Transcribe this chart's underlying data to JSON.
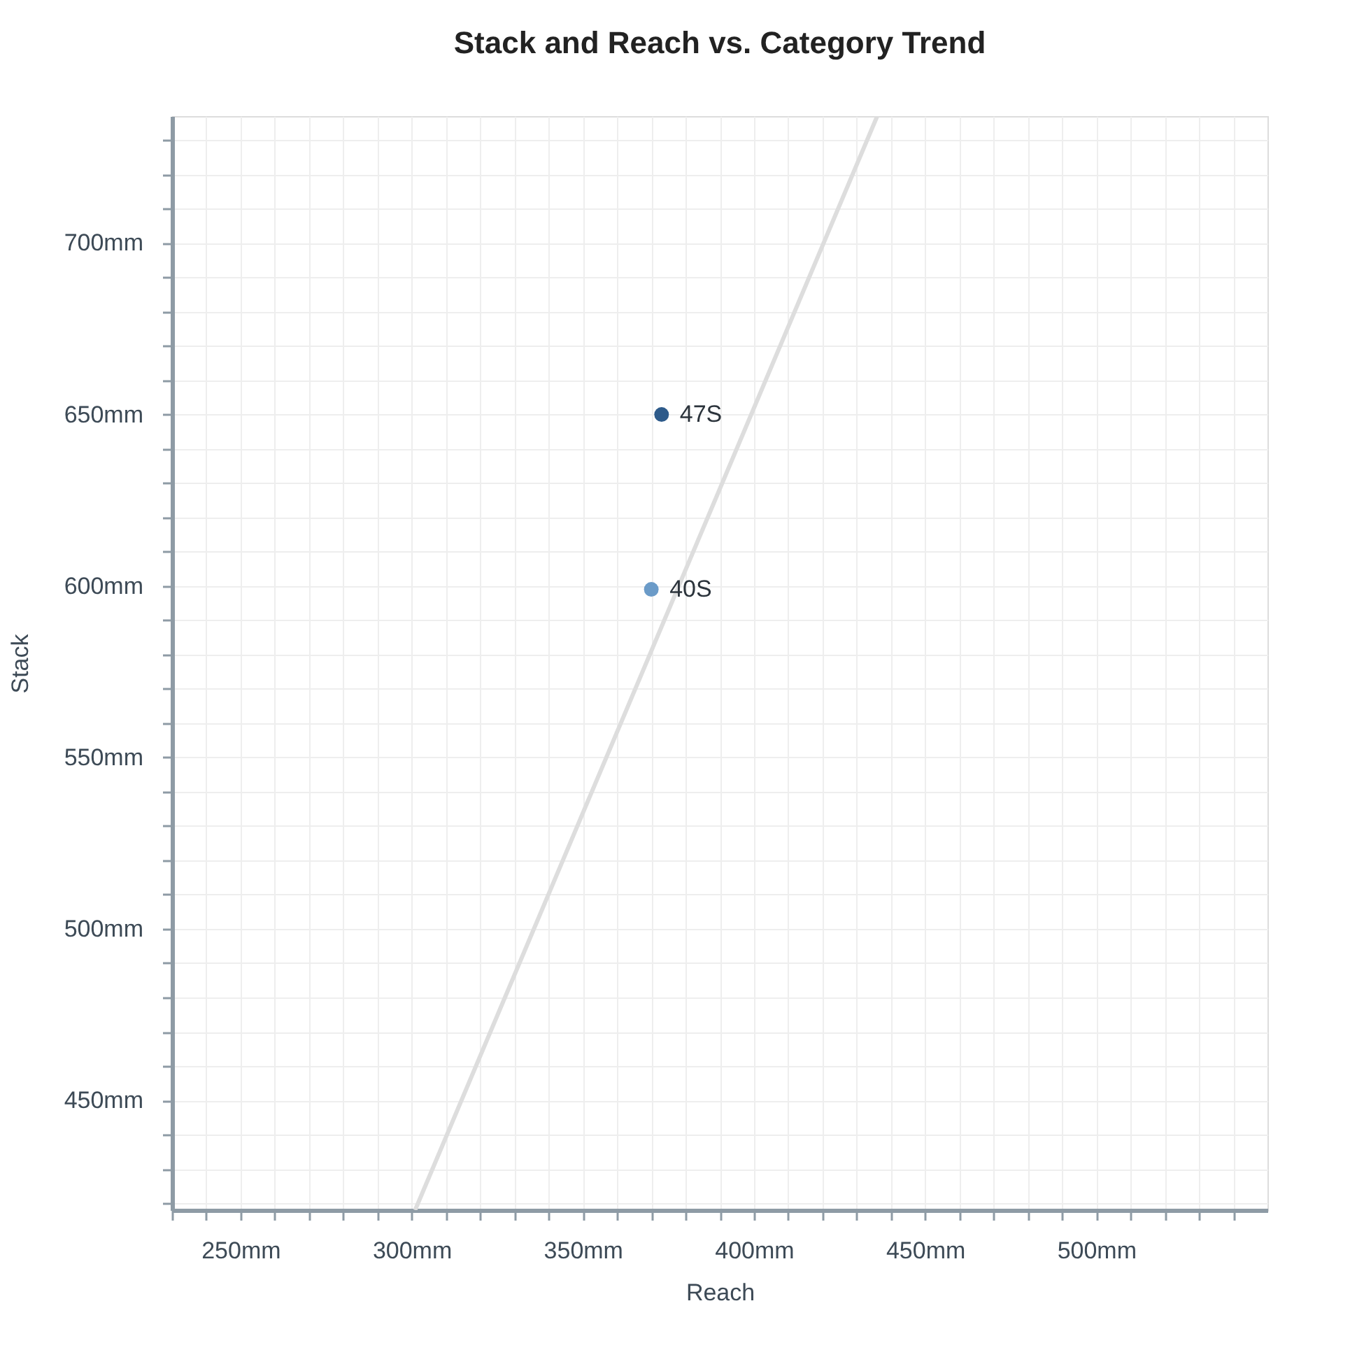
{
  "chart_data": {
    "type": "scatter",
    "title": "Stack and Reach vs. Category Trend",
    "xlabel": "Reach",
    "ylabel": "Stack",
    "xlim": [
      230,
      550
    ],
    "ylim": [
      418,
      737
    ],
    "xticks": [
      {
        "value": 230,
        "label": null
      },
      {
        "value": 240,
        "label": null
      },
      {
        "value": 250,
        "label": "250mm"
      },
      {
        "value": 260,
        "label": null
      },
      {
        "value": 270,
        "label": null
      },
      {
        "value": 280,
        "label": null
      },
      {
        "value": 290,
        "label": null
      },
      {
        "value": 300,
        "label": "300mm"
      },
      {
        "value": 310,
        "label": null
      },
      {
        "value": 320,
        "label": null
      },
      {
        "value": 330,
        "label": null
      },
      {
        "value": 340,
        "label": null
      },
      {
        "value": 350,
        "label": "350mm"
      },
      {
        "value": 360,
        "label": null
      },
      {
        "value": 370,
        "label": null
      },
      {
        "value": 380,
        "label": null
      },
      {
        "value": 390,
        "label": null
      },
      {
        "value": 400,
        "label": "400mm"
      },
      {
        "value": 410,
        "label": null
      },
      {
        "value": 420,
        "label": null
      },
      {
        "value": 430,
        "label": null
      },
      {
        "value": 440,
        "label": null
      },
      {
        "value": 450,
        "label": "450mm"
      },
      {
        "value": 460,
        "label": null
      },
      {
        "value": 470,
        "label": null
      },
      {
        "value": 480,
        "label": null
      },
      {
        "value": 490,
        "label": null
      },
      {
        "value": 500,
        "label": "500mm"
      },
      {
        "value": 510,
        "label": null
      },
      {
        "value": 520,
        "label": null
      },
      {
        "value": 530,
        "label": null
      },
      {
        "value": 540,
        "label": null
      }
    ],
    "yticks": [
      {
        "value": 420,
        "label": null
      },
      {
        "value": 430,
        "label": null
      },
      {
        "value": 440,
        "label": null
      },
      {
        "value": 450,
        "label": "450mm"
      },
      {
        "value": 460,
        "label": null
      },
      {
        "value": 470,
        "label": null
      },
      {
        "value": 480,
        "label": null
      },
      {
        "value": 490,
        "label": null
      },
      {
        "value": 500,
        "label": "500mm"
      },
      {
        "value": 510,
        "label": null
      },
      {
        "value": 520,
        "label": null
      },
      {
        "value": 530,
        "label": null
      },
      {
        "value": 540,
        "label": null
      },
      {
        "value": 550,
        "label": "550mm"
      },
      {
        "value": 560,
        "label": null
      },
      {
        "value": 570,
        "label": null
      },
      {
        "value": 580,
        "label": null
      },
      {
        "value": 590,
        "label": null
      },
      {
        "value": 600,
        "label": "600mm"
      },
      {
        "value": 610,
        "label": null
      },
      {
        "value": 620,
        "label": null
      },
      {
        "value": 630,
        "label": null
      },
      {
        "value": 640,
        "label": null
      },
      {
        "value": 650,
        "label": "650mm"
      },
      {
        "value": 660,
        "label": null
      },
      {
        "value": 670,
        "label": null
      },
      {
        "value": 680,
        "label": null
      },
      {
        "value": 690,
        "label": null
      },
      {
        "value": 700,
        "label": "700mm"
      },
      {
        "value": 710,
        "label": null
      },
      {
        "value": 720,
        "label": null
      },
      {
        "value": 730,
        "label": null
      }
    ],
    "grid": true,
    "marker": "circle",
    "series": [
      {
        "type": "line",
        "color": "#dddddd",
        "marker": "none",
        "line_style": "solid",
        "x": [
          301,
          436
        ],
        "values": [
          418,
          737
        ]
      },
      {
        "name": "47S",
        "color": "#2d5a8a",
        "x": [
          373
        ],
        "values": [
          650
        ]
      },
      {
        "name": "40S",
        "color": "#6b9bc8",
        "x": [
          370
        ],
        "values": [
          599
        ]
      }
    ]
  }
}
